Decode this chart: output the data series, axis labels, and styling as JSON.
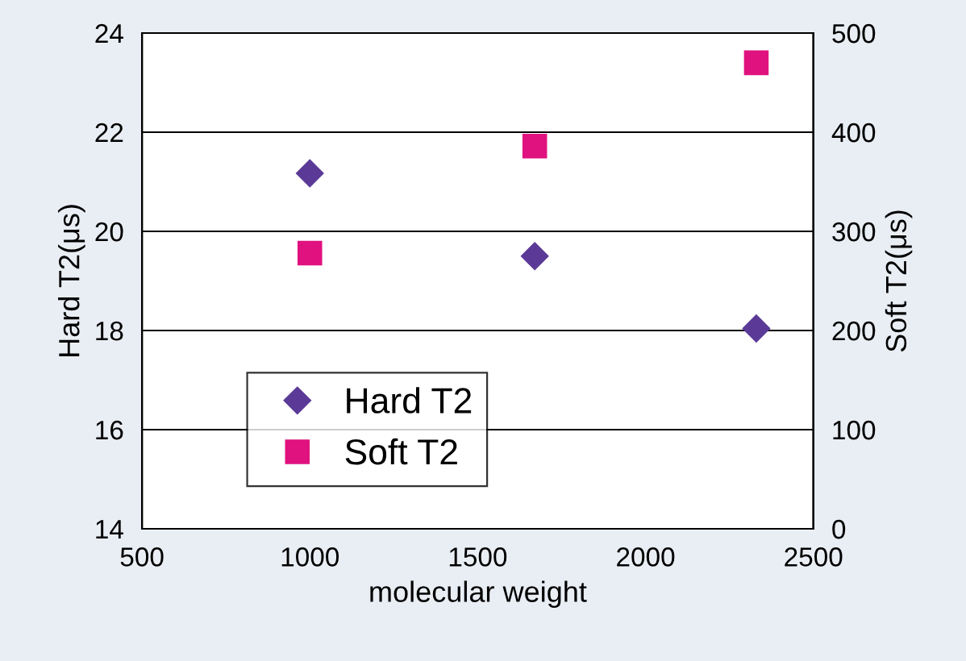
{
  "chart_data": {
    "type": "scatter",
    "xlabel": "molecular weight",
    "ylabel": "Hard T2(μs)",
    "y2label": "Soft T2(μs)",
    "x": [
      1000,
      1670,
      2330
    ],
    "series": [
      {
        "name": "Hard T2",
        "color": "#5b3a97",
        "values": [
          21.17,
          19.5,
          18.04
        ],
        "marker": "diamond"
      },
      {
        "name": "Soft T2",
        "color": "#e0127f",
        "values": [
          278,
          386,
          470
        ],
        "marker": "square",
        "axis": "y2"
      }
    ],
    "xlim": [
      500,
      2500
    ],
    "xticks": [
      500,
      1000,
      1500,
      2000,
      2500
    ],
    "ylim": [
      14,
      24
    ],
    "yticks": [
      14,
      16,
      18,
      20,
      22,
      24
    ],
    "y2lim": [
      0,
      500
    ],
    "y2ticks": [
      0,
      100,
      200,
      300,
      400,
      500
    ],
    "grid": "y",
    "legend": "bottom left"
  }
}
